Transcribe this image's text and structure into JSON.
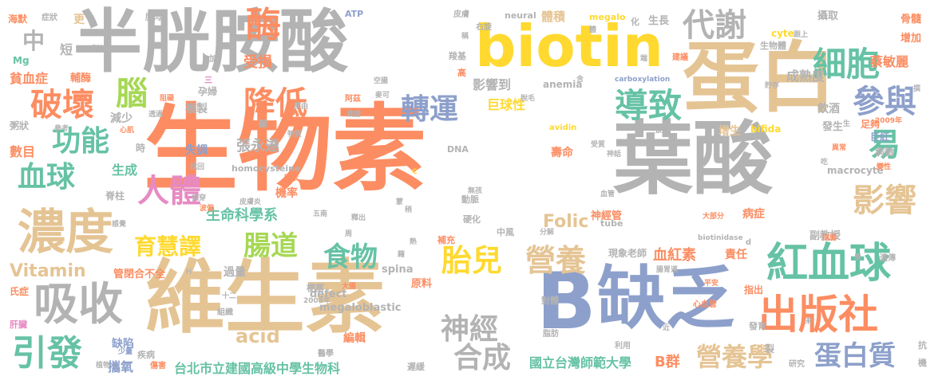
{
  "palette": {
    "orange": "#fc8d62",
    "gray": "#b3b3b3",
    "tan": "#e5c494",
    "teal": "#66c2a5",
    "blue": "#8da0cb",
    "yellow": "#ffd92f",
    "green": "#a6d854",
    "pink": "#e78ac3"
  },
  "words": [
    {
      "text": "生物素",
      "color": "orange"
    },
    {
      "text": "維生素",
      "color": "tan"
    },
    {
      "text": "葉酸",
      "color": "gray"
    },
    {
      "text": "半胱胺酸",
      "color": "gray"
    },
    {
      "text": "biotin",
      "color": "yellow"
    },
    {
      "text": "蛋白",
      "color": "tan"
    },
    {
      "text": "B",
      "color": "blue"
    },
    {
      "text": "缺乏",
      "color": "blue"
    },
    {
      "text": "濃度",
      "color": "tan"
    },
    {
      "text": "吸收",
      "color": "gray"
    },
    {
      "text": "出版社",
      "color": "orange"
    },
    {
      "text": "紅血球",
      "color": "teal"
    },
    {
      "text": "破壞",
      "color": "orange"
    },
    {
      "text": "細胞",
      "color": "teal"
    },
    {
      "text": "代謝",
      "color": "gray"
    },
    {
      "text": "酶",
      "color": "orange"
    },
    {
      "text": "降低",
      "color": "orange"
    },
    {
      "text": "轉運",
      "color": "blue"
    },
    {
      "text": "導致",
      "color": "teal"
    },
    {
      "text": "參與",
      "color": "blue"
    },
    {
      "text": "功能",
      "color": "teal"
    },
    {
      "text": "血球",
      "color": "teal"
    },
    {
      "text": "人體",
      "color": "pink"
    },
    {
      "text": "腦",
      "color": "green"
    },
    {
      "text": "育慧譯",
      "color": "yellow"
    },
    {
      "text": "腸道",
      "color": "green"
    },
    {
      "text": "食物",
      "color": "teal"
    },
    {
      "text": "胎兒",
      "color": "yellow"
    },
    {
      "text": "營養",
      "color": "tan"
    },
    {
      "text": "影響",
      "color": "tan"
    },
    {
      "text": "易",
      "color": "teal"
    },
    {
      "text": "神經",
      "color": "gray"
    },
    {
      "text": "合成",
      "color": "gray"
    },
    {
      "text": "引發",
      "color": "teal"
    },
    {
      "text": "蛋白質",
      "color": "blue"
    },
    {
      "text": "營養學",
      "color": "tan"
    },
    {
      "text": "acid",
      "color": "tan"
    },
    {
      "text": "Folic",
      "color": "tan"
    },
    {
      "text": "中",
      "color": "gray"
    },
    {
      "text": "Vitamin",
      "color": "tan"
    },
    {
      "text": "生命科學系",
      "color": "teal"
    },
    {
      "text": "台北市立建國高級中學生物科",
      "color": "teal"
    },
    {
      "text": "國立台灣師範大學",
      "color": "teal"
    },
    {
      "text": "B群",
      "color": "orange"
    },
    {
      "text": "張永達",
      "color": "gray"
    },
    {
      "text": "血紅素",
      "color": "orange"
    },
    {
      "text": "巨球性",
      "color": "yellow"
    },
    {
      "text": "影響到",
      "color": "gray"
    },
    {
      "text": "成熟度",
      "color": "gray"
    },
    {
      "text": "受損",
      "color": "orange"
    },
    {
      "text": "貧血症",
      "color": "orange"
    },
    {
      "text": "短",
      "color": "gray"
    },
    {
      "text": "數目",
      "color": "orange"
    },
    {
      "text": "缺陷",
      "color": "blue"
    },
    {
      "text": "攜氧",
      "color": "blue"
    },
    {
      "text": "megaloblastic",
      "color": "gray"
    },
    {
      "text": "編輯",
      "color": "orange"
    },
    {
      "text": "神經管",
      "color": "orange"
    },
    {
      "text": "壽命",
      "color": "orange"
    },
    {
      "text": "機率",
      "color": "orange"
    },
    {
      "text": "複製",
      "color": "gray"
    },
    {
      "text": "失調",
      "color": "blue"
    },
    {
      "text": "生成",
      "color": "teal"
    },
    {
      "text": "減少",
      "color": "gray"
    },
    {
      "text": "病症",
      "color": "orange"
    },
    {
      "text": "責任",
      "color": "orange"
    },
    {
      "text": "副教授",
      "color": "gray"
    },
    {
      "text": "現象老師",
      "color": "gray"
    },
    {
      "text": "體積",
      "color": "tan"
    },
    {
      "text": "defect",
      "color": "gray"
    },
    {
      "text": "spina",
      "color": "gray"
    },
    {
      "text": "過量",
      "color": "gray"
    },
    {
      "text": "管閉合不全",
      "color": "orange"
    },
    {
      "text": "更",
      "color": "tan"
    },
    {
      "text": "生長",
      "color": "gray"
    },
    {
      "text": "攝取",
      "color": "gray"
    },
    {
      "text": "骨髓",
      "color": "orange"
    },
    {
      "text": "增加",
      "color": "orange"
    },
    {
      "text": "蔡敏麗",
      "color": "orange"
    },
    {
      "text": "飲酒",
      "color": "gray"
    },
    {
      "text": "增生",
      "color": "tan"
    },
    {
      "text": "發生",
      "color": "gray"
    },
    {
      "text": "足夠",
      "color": "orange"
    },
    {
      "text": "巨紅",
      "color": "blue"
    },
    {
      "text": "病徵",
      "color": "gray"
    },
    {
      "text": "macrocyte",
      "color": "gray"
    },
    {
      "text": "bifida",
      "color": "yellow"
    },
    {
      "text": "ATP",
      "color": "blue"
    },
    {
      "text": "neural",
      "color": "gray"
    },
    {
      "text": "megalo",
      "color": "yellow"
    },
    {
      "text": "cyte",
      "color": "yellow"
    },
    {
      "text": "anemia",
      "color": "gray"
    },
    {
      "text": "carboxylation",
      "color": "blue"
    },
    {
      "text": "avidin",
      "color": "yellow"
    },
    {
      "text": "homocysteine",
      "color": "gray"
    },
    {
      "text": "DNA",
      "color": "gray"
    },
    {
      "text": "tube",
      "color": "gray"
    },
    {
      "text": "biotinidase",
      "color": "gray"
    },
    {
      "text": "海默",
      "color": "orange"
    },
    {
      "text": "症狀",
      "color": "gray"
    },
    {
      "text": "肌肉",
      "color": "gray"
    },
    {
      "text": "幫忙",
      "color": "gray"
    },
    {
      "text": "Mg",
      "color": "teal"
    },
    {
      "text": "輔酶",
      "color": "orange"
    },
    {
      "text": "粥狀",
      "color": "gray"
    },
    {
      "text": "孕婦",
      "color": "gray"
    },
    {
      "text": "脊柱",
      "color": "gray"
    },
    {
      "text": "氏症",
      "color": "orange"
    },
    {
      "text": "肝臟",
      "color": "pink"
    },
    {
      "text": "2008年",
      "color": "gray"
    },
    {
      "text": "2009年",
      "color": "orange"
    },
    {
      "text": "原料",
      "color": "orange"
    },
    {
      "text": "梗塞",
      "color": "gray"
    },
    {
      "text": "中風",
      "color": "gray"
    },
    {
      "text": "補充",
      "color": "orange"
    },
    {
      "text": "硬化",
      "color": "gray"
    },
    {
      "text": "動脈",
      "color": "gray"
    },
    {
      "text": "心血管",
      "color": "orange"
    },
    {
      "text": "指出",
      "color": "orange"
    },
    {
      "text": "發育",
      "color": "gray"
    },
    {
      "text": "遲緩",
      "color": "gray"
    },
    {
      "text": "醫學",
      "color": "gray"
    },
    {
      "text": "疾病",
      "color": "gray"
    },
    {
      "text": "脂肪",
      "color": "gray"
    },
    {
      "text": "對體",
      "color": "gray"
    },
    {
      "text": "遺傳",
      "color": "gray"
    },
    {
      "text": "研究",
      "color": "gray"
    },
    {
      "text": "利用",
      "color": "gray"
    },
    {
      "text": "裂",
      "color": "gray"
    },
    {
      "text": "抗",
      "color": "gray"
    },
    {
      "text": "機",
      "color": "gray"
    },
    {
      "text": "傷害",
      "color": "orange"
    },
    {
      "text": "少量",
      "color": "blue"
    },
    {
      "text": "植物",
      "color": "gray"
    },
    {
      "text": "組織",
      "color": "gray"
    },
    {
      "text": "皮膚",
      "color": "gray"
    },
    {
      "text": "右旋",
      "color": "gray"
    },
    {
      "text": "稱",
      "color": "gray"
    },
    {
      "text": "羧基",
      "color": "gray"
    },
    {
      "text": "體",
      "color": "gray"
    },
    {
      "text": "化",
      "color": "gray"
    },
    {
      "text": "生物體",
      "color": "gray"
    },
    {
      "text": "建議",
      "color": "orange"
    },
    {
      "text": "端",
      "color": "gray"
    },
    {
      "text": "貯存",
      "color": "gray"
    },
    {
      "text": "跟上",
      "color": "gray"
    },
    {
      "text": "空腸",
      "color": "gray"
    },
    {
      "text": "高",
      "color": "orange"
    },
    {
      "text": "麥可",
      "color": "gray"
    },
    {
      "text": "阿茲",
      "color": "orange"
    },
    {
      "text": "樂鹿",
      "color": "gray"
    },
    {
      "text": "脫毛",
      "color": "gray"
    },
    {
      "text": "含",
      "color": "gray"
    },
    {
      "text": "資料",
      "color": "orange"
    },
    {
      "text": "參考",
      "color": "gray"
    },
    {
      "text": "心肌",
      "color": "orange"
    },
    {
      "text": "阻礙",
      "color": "orange"
    },
    {
      "text": "透過",
      "color": "gray"
    },
    {
      "text": "顯",
      "color": "gray"
    },
    {
      "text": "時",
      "color": "gray"
    },
    {
      "text": "找回",
      "color": "gray"
    },
    {
      "text": "因素",
      "color": "orange"
    },
    {
      "text": "物質",
      "color": "gray"
    },
    {
      "text": "C",
      "color": "yellow"
    },
    {
      "text": "蔗由",
      "color": "gray"
    },
    {
      "text": "揭穿",
      "color": "gray"
    },
    {
      "text": "皮膚炎",
      "color": "gray"
    },
    {
      "text": "五南",
      "color": "gray"
    },
    {
      "text": "釋出",
      "color": "gray"
    },
    {
      "text": "無孩",
      "color": "gray"
    },
    {
      "text": "受質",
      "color": "gray"
    },
    {
      "text": "神話",
      "color": "gray"
    },
    {
      "text": "異常",
      "color": "orange"
    },
    {
      "text": "吃",
      "color": "gray"
    },
    {
      "text": "變性",
      "color": "orange"
    },
    {
      "text": "大部分",
      "color": "orange"
    },
    {
      "text": "指腸",
      "color": "orange"
    },
    {
      "text": "d",
      "color": "gray"
    },
    {
      "text": "學",
      "color": "gray"
    },
    {
      "text": "平安",
      "color": "orange"
    },
    {
      "text": "末",
      "color": "gray"
    },
    {
      "text": "近",
      "color": "gray"
    },
    {
      "text": "感覺",
      "color": "gray"
    },
    {
      "text": "Ｈ",
      "color": "gray"
    },
    {
      "text": "十二",
      "color": "gray"
    },
    {
      "text": "大腸",
      "color": "orange"
    },
    {
      "text": "腸胃道",
      "color": "gray"
    },
    {
      "text": "三",
      "color": "pink"
    },
    {
      "text": "加",
      "color": "gray"
    },
    {
      "text": "分解",
      "color": "gray"
    },
    {
      "text": "周",
      "color": "gray"
    },
    {
      "text": "熱",
      "color": "gray"
    },
    {
      "text": "藉",
      "color": "gray"
    },
    {
      "text": "稍",
      "color": "gray"
    },
    {
      "text": "張則",
      "color": "gray"
    },
    {
      "text": "生",
      "color": "gray"
    },
    {
      "text": "血管",
      "color": "gray"
    },
    {
      "text": "波偏",
      "color": "orange"
    },
    {
      "text": "蒙",
      "color": "gray"
    },
    {
      "text": "撰",
      "color": "gray"
    }
  ]
}
